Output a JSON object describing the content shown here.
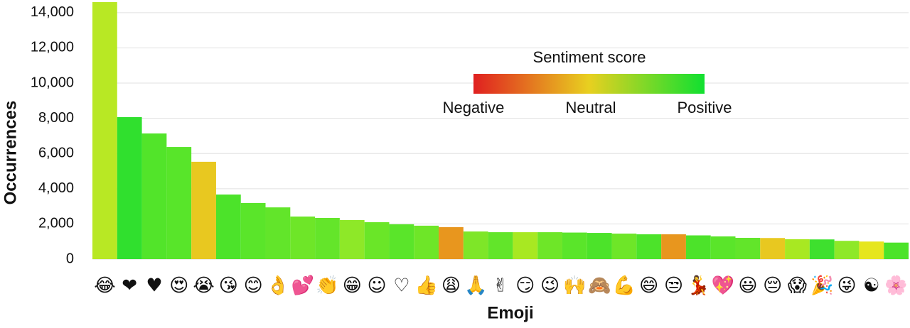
{
  "chart_data": {
    "type": "bar",
    "x_label": "Emoji",
    "y_label": "Occurrences",
    "categories": [
      "😂",
      "❤",
      "♥",
      "😍",
      "😭",
      "😘",
      "😊",
      "👌",
      "💕",
      "👏",
      "😁",
      "☺",
      "♡",
      "👍",
      "😩",
      "🙏",
      "✌",
      "😏",
      "😉",
      "🙌",
      "🙈",
      "💪",
      "😄",
      "😒",
      "💃",
      "💖",
      "😃",
      "😔",
      "😱",
      "🎉",
      "😜",
      "☯",
      "🌸"
    ],
    "values": [
      14600,
      8070,
      7140,
      6370,
      5530,
      3670,
      3190,
      2940,
      2420,
      2340,
      2220,
      2100,
      1980,
      1900,
      1820,
      1570,
      1530,
      1530,
      1530,
      1510,
      1490,
      1450,
      1410,
      1410,
      1350,
      1290,
      1210,
      1200,
      1130,
      1120,
      1040,
      1000,
      940
    ],
    "colors": [
      "#b8e824",
      "#30e02e",
      "#52e42a",
      "#58e52a",
      "#e8c820",
      "#4ce32a",
      "#5ae52a",
      "#62e52a",
      "#6ee628",
      "#64e52a",
      "#8ee828",
      "#6ae628",
      "#5ae52a",
      "#6ee628",
      "#e8961e",
      "#7ee628",
      "#62e52a",
      "#a8e822",
      "#6ee628",
      "#5ae52a",
      "#4ce32a",
      "#6ee628",
      "#4ce32a",
      "#e8961e",
      "#4ce32a",
      "#5ae52a",
      "#62e52a",
      "#e8c820",
      "#a8e822",
      "#3ee02e",
      "#8ee828",
      "#e6e61e",
      "#4ce32a"
    ],
    "ylim": [
      0,
      14600
    ],
    "yticks": [
      0,
      {
        "value": 2000,
        "label": "2,000"
      },
      {
        "value": 4000,
        "label": "4,000"
      },
      {
        "value": 6000,
        "label": "6,000"
      },
      {
        "value": 8000,
        "label": "8,000"
      },
      {
        "value": 10000,
        "label": "10,000"
      },
      {
        "value": 12000,
        "label": "12,000"
      },
      {
        "value": 14000,
        "label": "14,000"
      }
    ],
    "grid": true,
    "colorbar": {
      "title": "Sentiment score",
      "labels": [
        "Negative",
        "Neutral",
        "Positive"
      ],
      "colors": [
        "#e02020",
        "#e8d020",
        "#10e030"
      ]
    }
  }
}
